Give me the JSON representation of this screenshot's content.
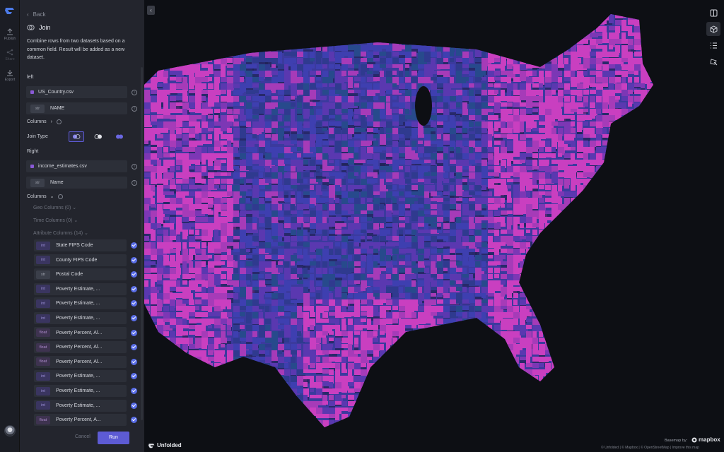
{
  "rail": {
    "items": [
      {
        "label": "Publish",
        "icon": "upload-icon"
      },
      {
        "label": "Share",
        "icon": "share-icon"
      },
      {
        "label": "Export",
        "icon": "download-icon"
      }
    ]
  },
  "panel": {
    "back_label": "Back",
    "title": "Join",
    "description": "Combine rows from two datasets based on a common field. Result will be added as a new dataset.",
    "left_label": "left",
    "left_dataset": "US_Country.csv",
    "left_field_type": "str",
    "left_field": "NAME",
    "columns_label_1": "Columns",
    "join_type_label": "Join Type",
    "right_label": "Right",
    "right_dataset": "income_estimates.csv",
    "right_field_type": "str",
    "right_field": "Name",
    "columns_label_2": "Columns",
    "geo_columns": "Geo Columns (0)",
    "time_columns": "Time Columns (0)",
    "attribute_columns": "Attribute Columns (14)",
    "columns": [
      {
        "type": "int",
        "name": "State FIPS Code"
      },
      {
        "type": "int",
        "name": "County FIPS Code"
      },
      {
        "type": "str",
        "name": "Postal Code"
      },
      {
        "type": "int",
        "name": "Poverty Estimate, ..."
      },
      {
        "type": "int",
        "name": "Poverty Estimate, ..."
      },
      {
        "type": "int",
        "name": "Poverty Estimate, ..."
      },
      {
        "type": "float",
        "name": "Poverty Percent, Al..."
      },
      {
        "type": "float",
        "name": "Poverty Percent, Al..."
      },
      {
        "type": "float",
        "name": "Poverty Percent, Al..."
      },
      {
        "type": "int",
        "name": "Poverty Estimate, ..."
      },
      {
        "type": "int",
        "name": "Poverty Estimate, ..."
      },
      {
        "type": "int",
        "name": "Poverty Estimate, ..."
      },
      {
        "type": "float",
        "name": "Poverty Percent, A..."
      }
    ],
    "cancel_label": "Cancel",
    "run_label": "Run"
  },
  "map": {
    "brand": "Unfolded",
    "basemap_label": "Basemap by:",
    "mapbox_label": "mapbox",
    "attribution": "© Unfolded | © Mapbox | © OpenStreetMap | Improve this map"
  },
  "colors": {
    "accent": "#5d5bd4",
    "magenta": "#c93fc0",
    "blue": "#3b3a9e"
  }
}
